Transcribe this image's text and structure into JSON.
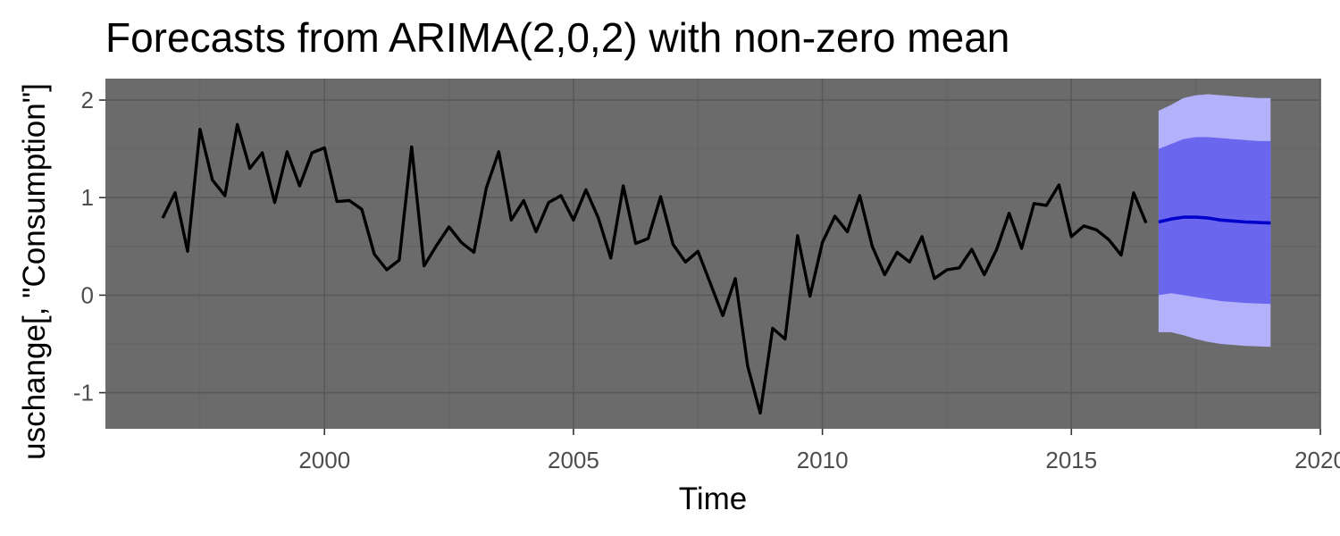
{
  "chart_data": {
    "type": "line",
    "title": "Forecasts from ARIMA(2,0,2) with non-zero mean",
    "xlabel": "Time",
    "ylabel": "uschange[, \"Consumption\"]",
    "xlim": [
      1995.6,
      2020
    ],
    "ylim": [
      -1.37,
      2.22
    ],
    "x_ticks": [
      2000,
      2005,
      2010,
      2015,
      2020
    ],
    "x_tick_labels": [
      "2000",
      "2005",
      "2010",
      "2015",
      "2020"
    ],
    "y_ticks": [
      -1,
      0,
      1,
      2
    ],
    "y_tick_labels": [
      "-1",
      "0",
      "1",
      "2"
    ],
    "grid": true,
    "legend": "none",
    "colors": {
      "panel": "#6b6b6b",
      "series": "#000000",
      "forecast": "#0000cc",
      "band80": "#6a67ee",
      "band95": "#b3b1fa"
    },
    "series": [
      {
        "x": [
          1996.75,
          1997.0,
          1997.25,
          1997.5,
          1997.75,
          1998.0,
          1998.25,
          1998.5,
          1998.75,
          1999.0,
          1999.25,
          1999.5,
          1999.75,
          2000.0,
          2000.25,
          2000.5,
          2000.75,
          2001.0,
          2001.25,
          2001.5,
          2001.75,
          2002.0,
          2002.25,
          2002.5,
          2002.75,
          2003.0,
          2003.25,
          2003.5,
          2003.75,
          2004.0,
          2004.25,
          2004.5,
          2004.75,
          2005.0,
          2005.25,
          2005.5,
          2005.75,
          2006.0,
          2006.25,
          2006.5,
          2006.75,
          2007.0,
          2007.25,
          2007.5,
          2007.75,
          2008.0,
          2008.25,
          2008.5,
          2008.75,
          2009.0,
          2009.25,
          2009.5,
          2009.75,
          2010.0,
          2010.25,
          2010.5,
          2010.75,
          2011.0,
          2011.25,
          2011.5,
          2011.75,
          2012.0,
          2012.25,
          2012.5,
          2012.75,
          2013.0,
          2013.25,
          2013.5,
          2013.75,
          2014.0,
          2014.25,
          2014.5,
          2014.75,
          2015.0,
          2015.25,
          2015.5,
          2015.75,
          2016.0,
          2016.25,
          2016.5
        ],
        "values": [
          0.79,
          1.05,
          0.45,
          1.7,
          1.18,
          1.02,
          1.75,
          1.3,
          1.46,
          0.95,
          1.47,
          1.12,
          1.46,
          1.51,
          0.96,
          0.97,
          0.88,
          0.42,
          0.26,
          0.36,
          1.52,
          0.3,
          0.51,
          0.7,
          0.54,
          0.44,
          1.1,
          1.47,
          0.77,
          0.97,
          0.65,
          0.95,
          1.02,
          0.77,
          1.08,
          0.79,
          0.38,
          1.12,
          0.53,
          0.58,
          1.01,
          0.52,
          0.34,
          0.45,
          0.12,
          -0.21,
          0.17,
          -0.73,
          -1.21,
          -0.34,
          -0.45,
          0.61,
          -0.01,
          0.54,
          0.81,
          0.65,
          1.02,
          0.5,
          0.21,
          0.44,
          0.34,
          0.6,
          0.17,
          0.26,
          0.28,
          0.47,
          0.21,
          0.47,
          0.84,
          0.48,
          0.94,
          0.92,
          1.13,
          0.6,
          0.71,
          0.67,
          0.57,
          0.41,
          1.05,
          0.74
        ]
      }
    ],
    "forecast": {
      "x": [
        2016.75,
        2017.0,
        2017.25,
        2017.5,
        2017.75,
        2018.0,
        2018.25,
        2018.5,
        2018.75,
        2019.0
      ],
      "mean": [
        0.75,
        0.78,
        0.8,
        0.8,
        0.79,
        0.77,
        0.76,
        0.75,
        0.745,
        0.74
      ],
      "lo80": [
        0.0,
        0.02,
        0.0,
        -0.02,
        -0.04,
        -0.06,
        -0.07,
        -0.08,
        -0.085,
        -0.09
      ],
      "hi80": [
        1.5,
        1.55,
        1.6,
        1.62,
        1.62,
        1.61,
        1.6,
        1.59,
        1.58,
        1.58
      ],
      "lo95": [
        -0.38,
        -0.38,
        -0.41,
        -0.45,
        -0.48,
        -0.5,
        -0.51,
        -0.52,
        -0.525,
        -0.53
      ],
      "hi95": [
        1.89,
        1.95,
        2.02,
        2.05,
        2.06,
        2.05,
        2.04,
        2.03,
        2.02,
        2.02
      ]
    }
  }
}
